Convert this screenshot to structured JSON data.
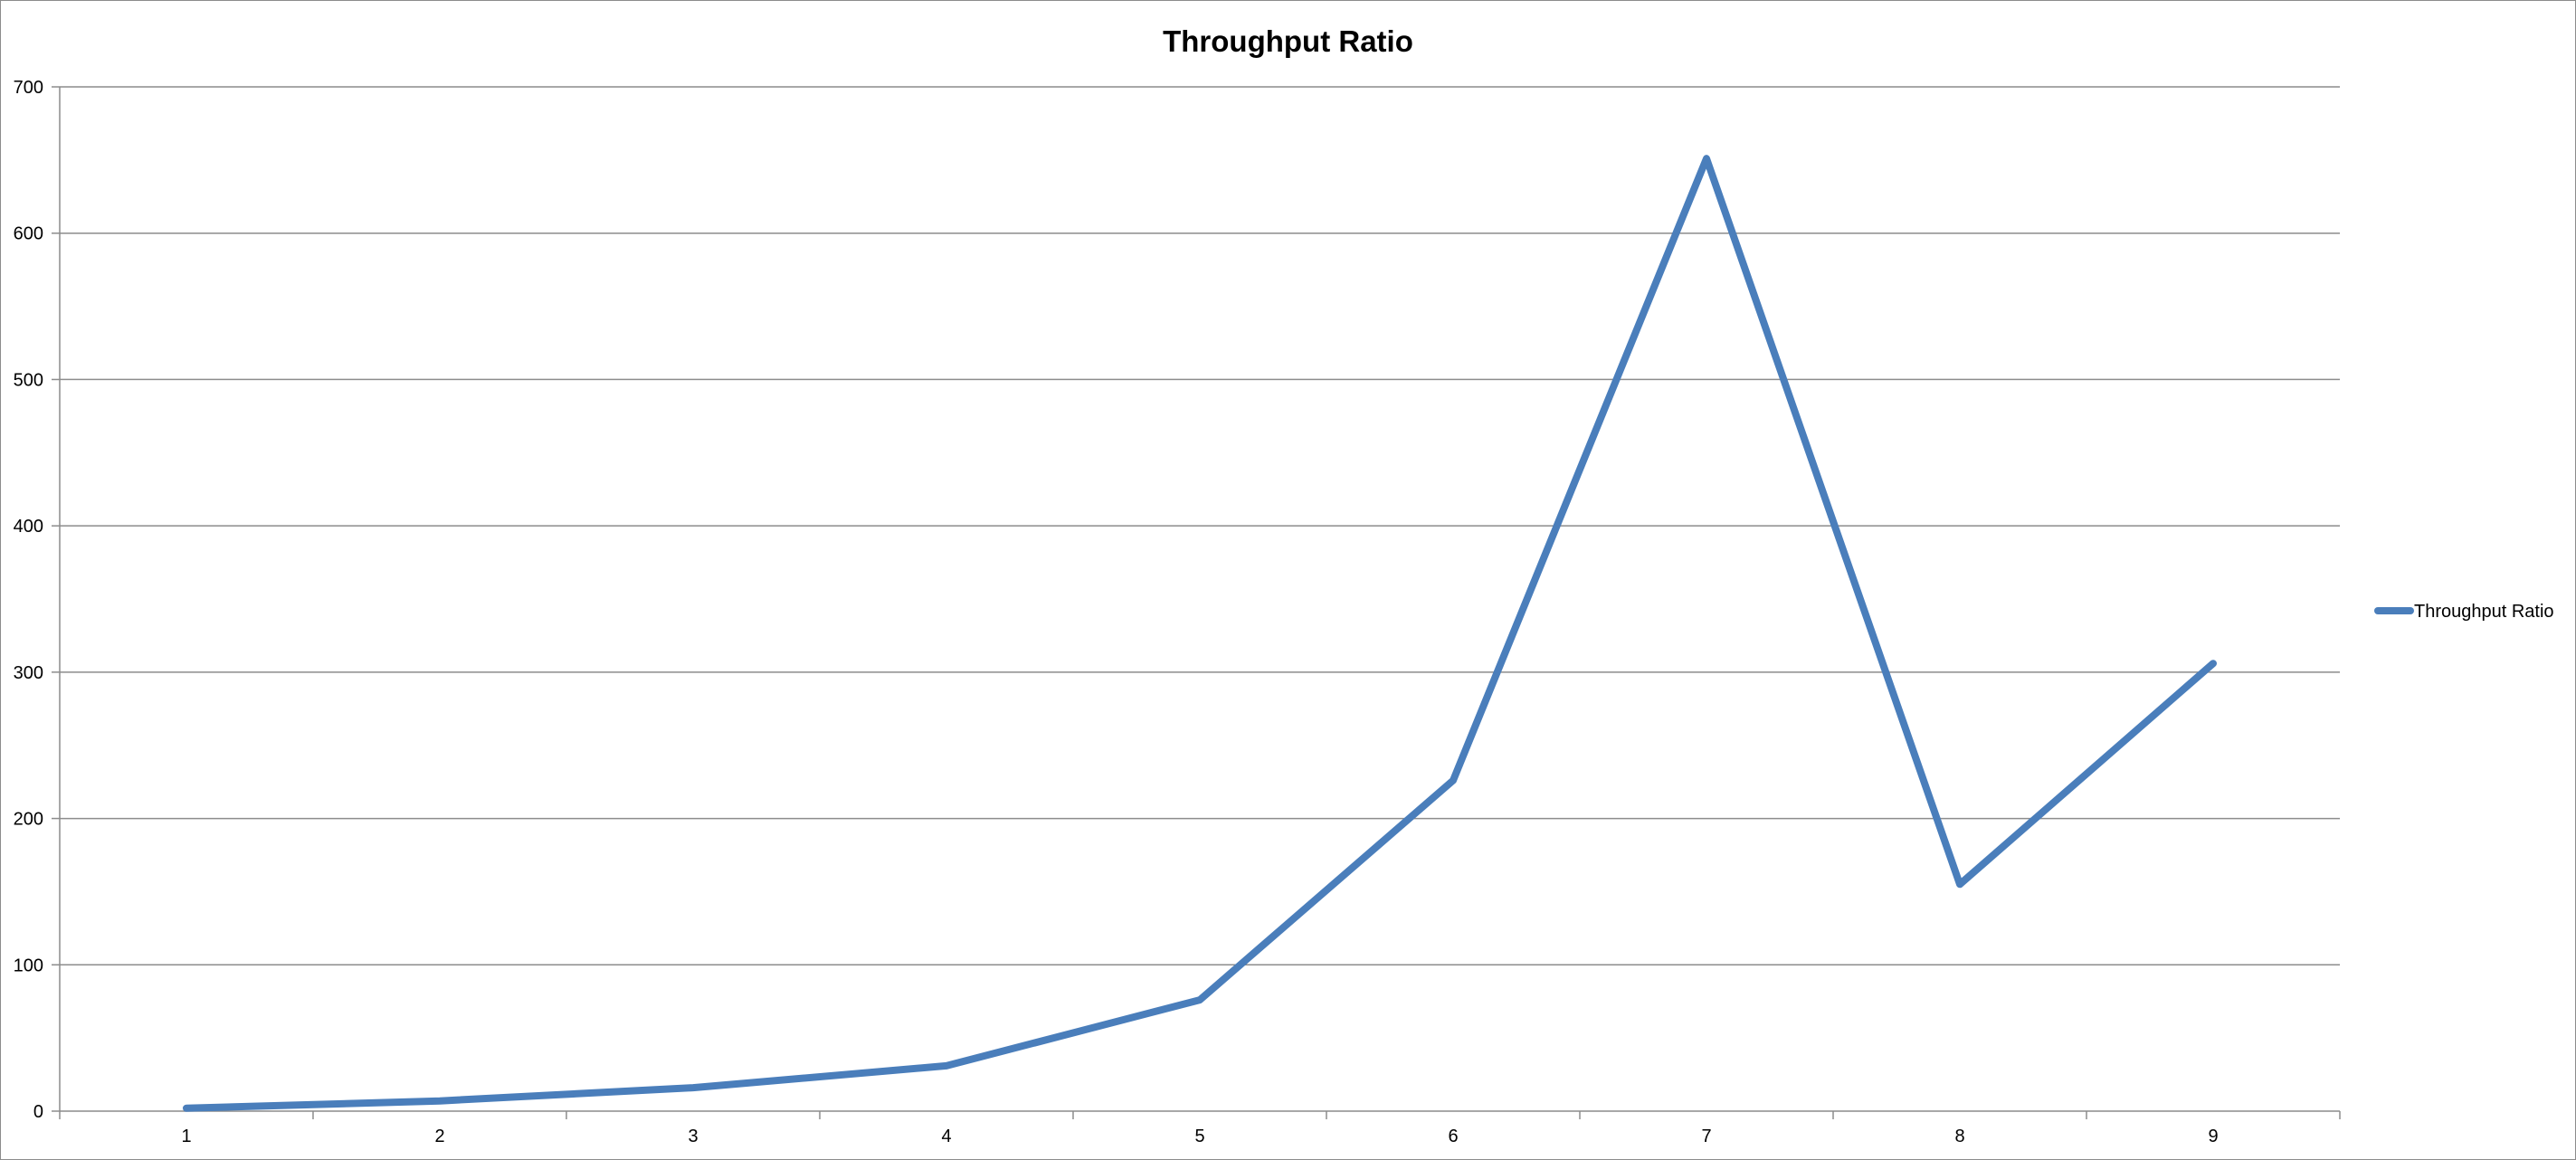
{
  "chart_data": {
    "type": "line",
    "title": "Throughput Ratio",
    "xlabel": "",
    "ylabel": "",
    "categories": [
      "1",
      "2",
      "3",
      "4",
      "5",
      "6",
      "7",
      "8",
      "9"
    ],
    "series": [
      {
        "name": "Throughput Ratio",
        "values": [
          2,
          7,
          16,
          31,
          76,
          226,
          651,
          155,
          306
        ],
        "color": "#4a7ebb"
      }
    ],
    "ylim": [
      0,
      700
    ],
    "yticks": [
      "0",
      "100",
      "200",
      "300",
      "400",
      "500",
      "600",
      "700"
    ],
    "grid": true,
    "legend_position": "right"
  }
}
